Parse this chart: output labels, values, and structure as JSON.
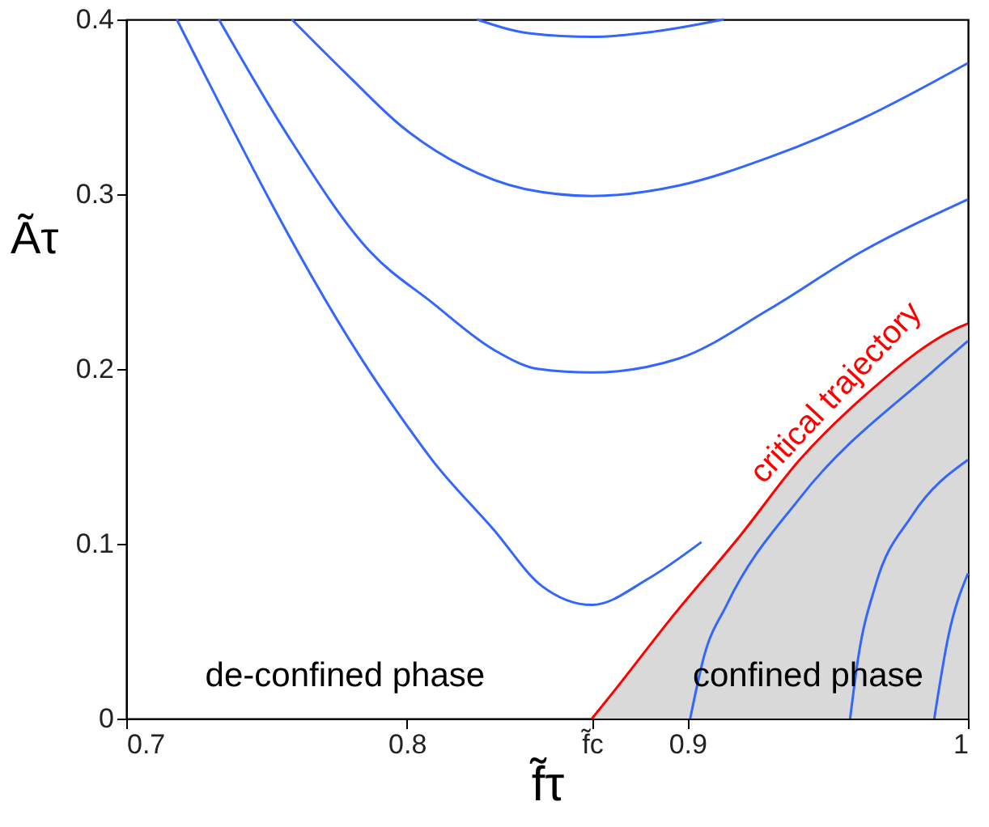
{
  "chart_data": {
    "type": "line",
    "xlabel": "f̃τ",
    "ylabel": "Ãτ",
    "xlim": [
      0.7,
      1.0
    ],
    "ylim": [
      0,
      0.4
    ],
    "xticks": [
      0.7,
      0.8,
      {
        "value": 0.866,
        "label": "f̃c"
      },
      0.9,
      1
    ],
    "yticks": [
      0,
      0.1,
      0.2,
      0.3,
      0.4
    ],
    "grid": false,
    "marker": "none",
    "line_style": "solid",
    "series": [
      {
        "color": "#3366ff",
        "x": [
          0.718,
          0.787,
          0.799,
          0.809,
          0.831,
          0.848,
          0.866,
          0.886,
          0.905
        ],
        "values": [
          0.4,
          0.198,
          0.17,
          0.148,
          0.108,
          0.076,
          0.065,
          0.08,
          0.101
        ]
      },
      {
        "color": "#3366ff",
        "x": [
          0.733,
          0.757,
          0.787,
          0.809,
          0.831,
          0.847,
          0.866,
          0.897,
          0.929,
          0.962,
          1.0
        ],
        "values": [
          0.4,
          0.335,
          0.267,
          0.238,
          0.211,
          0.2,
          0.198,
          0.206,
          0.234,
          0.267,
          0.297
        ]
      },
      {
        "color": "#3366ff",
        "x": [
          0.759,
          0.779,
          0.798,
          0.82,
          0.842,
          0.866,
          0.897,
          0.929,
          0.962,
          1.0
        ],
        "values": [
          0.4,
          0.368,
          0.339,
          0.316,
          0.303,
          0.299,
          0.305,
          0.321,
          0.343,
          0.375
        ]
      },
      {
        "color": "#3366ff",
        "x": [
          0.825,
          0.844,
          0.866,
          0.888,
          0.913
        ],
        "values": [
          0.4,
          0.392,
          0.39,
          0.393,
          0.4
        ]
      },
      {
        "color": "#3366ff",
        "x": [
          0.901,
          0.906,
          0.914,
          0.94,
          0.987,
          1.0
        ],
        "values": [
          0,
          0.036,
          0.065,
          0.126,
          0.198,
          0.216
        ]
      },
      {
        "color": "#3366ff",
        "x": [
          0.958,
          0.961,
          0.967,
          0.98,
          1.0
        ],
        "values": [
          0,
          0.036,
          0.076,
          0.116,
          0.148
        ]
      },
      {
        "color": "#3366ff",
        "x": [
          0.988,
          0.993,
          1.0
        ],
        "values": [
          0,
          0.047,
          0.083
        ]
      },
      {
        "name": "critical trajectory",
        "color": "#ff0000",
        "x": [
          0.866,
          0.875,
          0.894,
          0.919,
          0.94,
          0.962,
          0.997,
          1.0
        ],
        "values": [
          0,
          0.018,
          0.057,
          0.105,
          0.148,
          0.183,
          0.224,
          0.226
        ],
        "lower": [
          0,
          0,
          0,
          0,
          0,
          0,
          0,
          0
        ],
        "upper": [
          0,
          0.018,
          0.057,
          0.105,
          0.148,
          0.183,
          0.224,
          0.226
        ]
      }
    ],
    "annotations": [
      "de-confined phase",
      "confined phase"
    ]
  }
}
